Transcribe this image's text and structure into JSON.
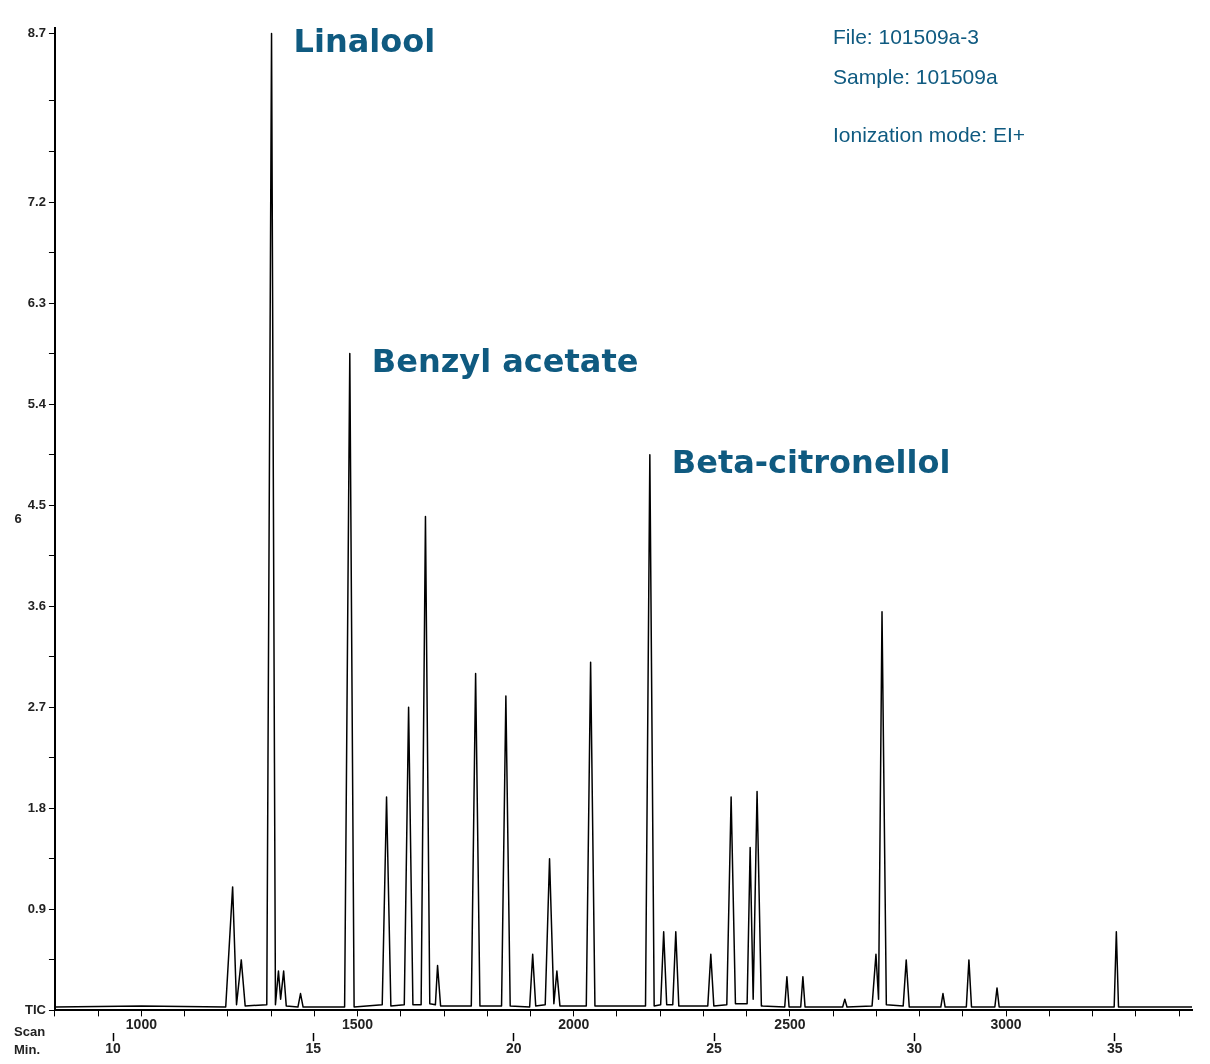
{
  "chart_data": {
    "type": "line",
    "ylabel": "6",
    "xlabel": "Scan",
    "x2label": "Min.",
    "x": [
      800,
      1000,
      1195,
      1211,
      1220,
      1231,
      1240,
      1290,
      1301,
      1310,
      1317,
      1322,
      1329,
      1335,
      1362,
      1368,
      1374,
      1470,
      1482,
      1492,
      1557,
      1567,
      1577,
      1608,
      1618,
      1628,
      1647,
      1657,
      1667,
      1680,
      1685,
      1692,
      1763,
      1773,
      1783,
      1833,
      1843,
      1853,
      1898,
      1905,
      1912,
      1934,
      1944,
      1954,
      1961,
      1968,
      2029,
      2039,
      2049,
      2166,
      2176,
      2186,
      2201,
      2208,
      2215,
      2229,
      2236,
      2243,
      2310,
      2317,
      2324,
      2354,
      2364,
      2374,
      2401,
      2408,
      2415,
      2424,
      2434,
      2488,
      2493,
      2498,
      2525,
      2530,
      2535,
      2622,
      2627,
      2632,
      2690,
      2699,
      2705,
      2713,
      2723,
      2762,
      2769,
      2776,
      2849,
      2854,
      2859,
      2908,
      2914,
      2920,
      2974,
      2979,
      2984,
      3250,
      3255,
      3260,
      3430
    ],
    "series": [
      {
        "color": "#000000",
        "values": [
          0.03,
          0.04,
          0.03,
          1.1,
          0.05,
          0.45,
          0.04,
          0.05,
          8.7,
          0.05,
          0.35,
          0.1,
          0.35,
          0.04,
          0.03,
          0.15,
          0.03,
          0.03,
          5.85,
          0.03,
          0.05,
          1.9,
          0.04,
          0.05,
          2.7,
          0.05,
          0.05,
          4.4,
          0.06,
          0.05,
          0.4,
          0.04,
          0.04,
          3.0,
          0.04,
          0.04,
          2.8,
          0.04,
          0.03,
          0.5,
          0.04,
          0.05,
          1.35,
          0.06,
          0.35,
          0.04,
          0.04,
          3.1,
          0.04,
          0.04,
          4.95,
          0.04,
          0.05,
          0.7,
          0.05,
          0.05,
          0.7,
          0.04,
          0.04,
          0.5,
          0.04,
          0.05,
          1.9,
          0.06,
          0.06,
          1.45,
          0.1,
          1.95,
          0.04,
          0.03,
          0.3,
          0.03,
          0.03,
          0.3,
          0.03,
          0.03,
          0.1,
          0.03,
          0.04,
          0.5,
          0.1,
          3.55,
          0.05,
          0.04,
          0.45,
          0.03,
          0.03,
          0.15,
          0.03,
          0.03,
          0.45,
          0.03,
          0.03,
          0.2,
          0.03,
          0.03,
          0.7,
          0.03,
          0.03
        ]
      }
    ],
    "xlim": [
      800,
      3430
    ],
    "xticks": [
      {
        "value": 800,
        "label": null
      },
      {
        "value": 900,
        "label": null
      },
      1000,
      {
        "value": 1100,
        "label": null
      },
      {
        "value": 1200,
        "label": null
      },
      {
        "value": 1300,
        "label": null
      },
      {
        "value": 1400,
        "label": null
      },
      1500,
      {
        "value": 1600,
        "label": null
      },
      {
        "value": 1700,
        "label": null
      },
      {
        "value": 1800,
        "label": null
      },
      {
        "value": 1900,
        "label": null
      },
      2000,
      {
        "value": 2100,
        "label": null
      },
      {
        "value": 2200,
        "label": null
      },
      {
        "value": 2300,
        "label": null
      },
      {
        "value": 2400,
        "label": null
      },
      2500,
      {
        "value": 2600,
        "label": null
      },
      {
        "value": 2700,
        "label": null
      },
      {
        "value": 2800,
        "label": null
      },
      {
        "value": 2900,
        "label": null
      },
      3000,
      {
        "value": 3100,
        "label": null
      },
      {
        "value": 3200,
        "label": null
      },
      {
        "value": 3300,
        "label": null
      },
      {
        "value": 3400,
        "label": null
      }
    ],
    "x2lim": [
      8.55,
      36.93
    ],
    "x2ticks": [
      10,
      15,
      20,
      25,
      30,
      35
    ],
    "ylim": [
      0,
      8.75
    ],
    "yticks": [
      {
        "value": 0,
        "label": "TIC"
      },
      {
        "value": 0.45,
        "label": null
      },
      0.9,
      {
        "value": 1.35,
        "label": null
      },
      1.8,
      {
        "value": 2.25,
        "label": null
      },
      2.7,
      {
        "value": 3.15,
        "label": null
      },
      3.6,
      {
        "value": 4.05,
        "label": null
      },
      4.5,
      {
        "value": 4.95,
        "label": null
      },
      5.4,
      {
        "value": 5.85,
        "label": null
      },
      6.3,
      {
        "value": 6.75,
        "label": null
      },
      7.2,
      {
        "value": 7.65,
        "label": null
      },
      {
        "value": 8.1,
        "label": null
      },
      8.7
    ],
    "grid": false,
    "legend": false,
    "marker": "none",
    "line_style": "solid",
    "annotations": [
      {
        "text": "Linalool",
        "x": 1301,
        "y": 8.7
      },
      {
        "text": "Benzyl acetate",
        "x": 1482,
        "y": 5.85
      },
      {
        "text": "Beta-citronellol",
        "x": 2176,
        "y": 4.95
      },
      "File: 101509a-3",
      "Sample: 101509a",
      "Ionization mode: EI+"
    ]
  }
}
